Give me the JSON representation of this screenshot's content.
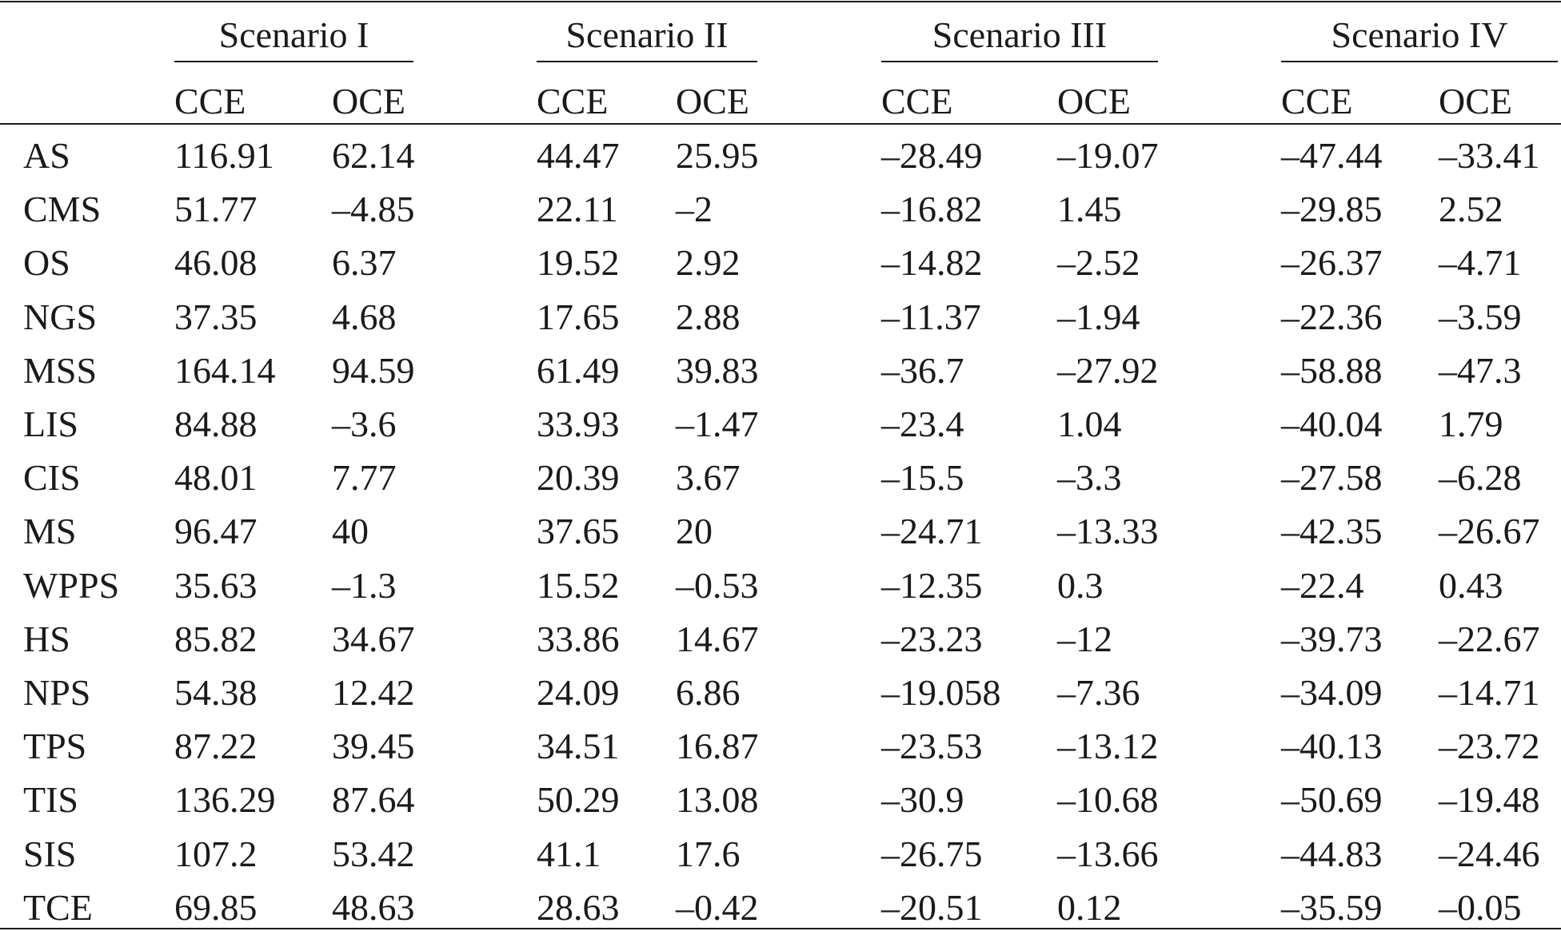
{
  "table": {
    "groups": [
      "Scenario I",
      "Scenario II",
      "Scenario III",
      "Scenario IV"
    ],
    "subheaders": [
      "CCE",
      "OCE",
      "CCE",
      "OCE",
      "CCE",
      "OCE",
      "CCE",
      "OCE"
    ],
    "rows": [
      {
        "label": "AS",
        "values": [
          "116.91",
          "62.14",
          "44.47",
          "25.95",
          "–28.49",
          "–19.07",
          "–47.44",
          "–33.41"
        ]
      },
      {
        "label": "CMS",
        "values": [
          "51.77",
          "–4.85",
          "22.11",
          "–2",
          "–16.82",
          "1.45",
          "–29.85",
          "2.52"
        ]
      },
      {
        "label": "OS",
        "values": [
          "46.08",
          "6.37",
          "19.52",
          "2.92",
          "–14.82",
          "–2.52",
          "–26.37",
          "–4.71"
        ]
      },
      {
        "label": "NGS",
        "values": [
          "37.35",
          "4.68",
          "17.65",
          "2.88",
          "–11.37",
          "–1.94",
          "–22.36",
          "–3.59"
        ]
      },
      {
        "label": "MSS",
        "values": [
          "164.14",
          "94.59",
          "61.49",
          "39.83",
          "–36.7",
          "–27.92",
          "–58.88",
          "–47.3"
        ]
      },
      {
        "label": "LIS",
        "values": [
          "84.88",
          "–3.6",
          "33.93",
          "–1.47",
          "–23.4",
          "1.04",
          "–40.04",
          "1.79"
        ]
      },
      {
        "label": "CIS",
        "values": [
          "48.01",
          "7.77",
          "20.39",
          "3.67",
          "–15.5",
          "–3.3",
          "–27.58",
          "–6.28"
        ]
      },
      {
        "label": "MS",
        "values": [
          "96.47",
          "40",
          "37.65",
          "20",
          "–24.71",
          "–13.33",
          "–42.35",
          "–26.67"
        ]
      },
      {
        "label": "WPPS",
        "values": [
          "35.63",
          "–1.3",
          "15.52",
          "–0.53",
          "–12.35",
          "0.3",
          "–22.4",
          "0.43"
        ]
      },
      {
        "label": "HS",
        "values": [
          "85.82",
          "34.67",
          "33.86",
          "14.67",
          "–23.23",
          "–12",
          "–39.73",
          "–22.67"
        ]
      },
      {
        "label": "NPS",
        "values": [
          "54.38",
          "12.42",
          "24.09",
          "6.86",
          "–19.058",
          "–7.36",
          "–34.09",
          "–14.71"
        ]
      },
      {
        "label": "TPS",
        "values": [
          "87.22",
          "39.45",
          "34.51",
          "16.87",
          "–23.53",
          "–13.12",
          "–40.13",
          "–23.72"
        ]
      },
      {
        "label": "TIS",
        "values": [
          "136.29",
          "87.64",
          "50.29",
          "13.08",
          "–30.9",
          "–10.68",
          "–50.69",
          "–19.48"
        ]
      },
      {
        "label": "SIS",
        "values": [
          "107.2",
          "53.42",
          "41.1",
          "17.6",
          "–26.75",
          "–13.66",
          "–44.83",
          "–24.46"
        ]
      },
      {
        "label": "TCE",
        "values": [
          "69.85",
          "48.63",
          "28.63",
          "–0.42",
          "–20.51",
          "0.12",
          "–35.59",
          "–0.05"
        ]
      }
    ]
  }
}
